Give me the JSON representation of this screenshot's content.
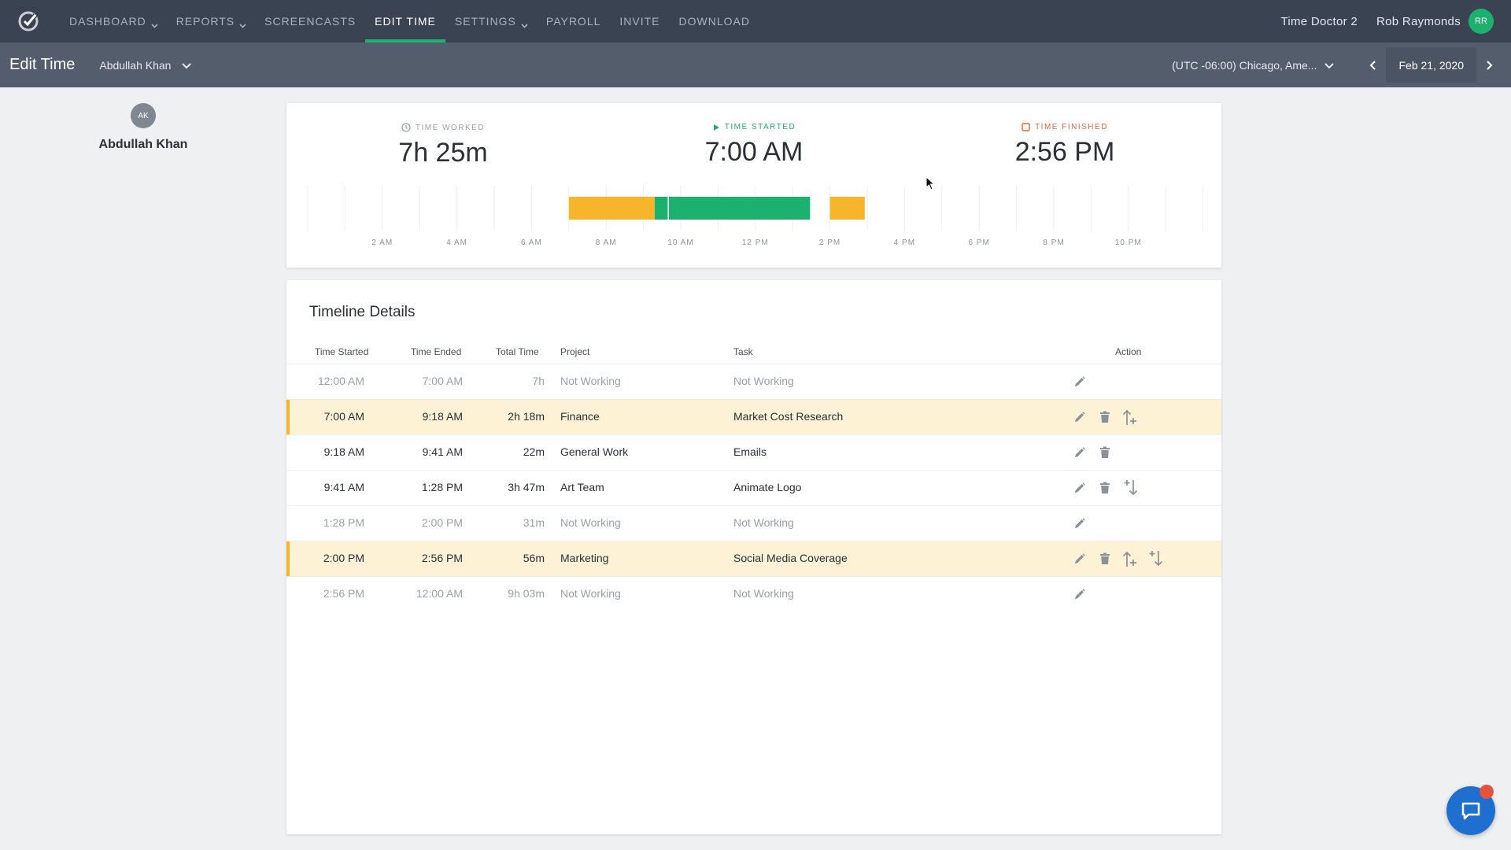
{
  "nav": {
    "items": [
      {
        "label": "DASHBOARD",
        "dropdown": true
      },
      {
        "label": "REPORTS",
        "dropdown": true
      },
      {
        "label": "SCREENCASTS",
        "dropdown": false
      },
      {
        "label": "EDIT TIME",
        "dropdown": false,
        "active": true
      },
      {
        "label": "SETTINGS",
        "dropdown": true
      },
      {
        "label": "PAYROLL",
        "dropdown": false
      },
      {
        "label": "INVITE",
        "dropdown": false
      },
      {
        "label": "DOWNLOAD",
        "dropdown": false
      }
    ],
    "company": "Time Doctor 2",
    "user_name": "Rob Raymonds",
    "user_initials": "RR",
    "accent": "#1db16f"
  },
  "subheader": {
    "title": "Edit Time",
    "selected_user": "Abdullah Khan",
    "timezone": "(UTC -06:00) Chicago, Ame...",
    "date": "Feb 21, 2020"
  },
  "profile": {
    "initials": "AK",
    "name": "Abdullah Khan"
  },
  "summary": {
    "worked_label": "TIME WORKED",
    "worked_value": "7h 25m",
    "started_label": "TIME STARTED",
    "started_value": "7:00 AM",
    "finished_label": "TIME FINISHED",
    "finished_value": "2:56 PM",
    "colors": {
      "worked": "#9aa0a8",
      "started": "#1db16f",
      "finished": "#e8663d"
    }
  },
  "chart_data": {
    "type": "timeline",
    "x_range_hours": [
      0,
      24
    ],
    "tick_labels": [
      "2 AM",
      "4 AM",
      "6 AM",
      "8 AM",
      "10 AM",
      "12 PM",
      "2 PM",
      "4 PM",
      "6 PM",
      "8 PM",
      "10 PM"
    ],
    "segments": [
      {
        "start": 7.0,
        "end": 9.3,
        "kind": "manual",
        "color": "#f8b52b"
      },
      {
        "start": 9.3,
        "end": 9.683,
        "kind": "tracked",
        "color": "#1db16f"
      },
      {
        "start": 9.683,
        "end": 13.467,
        "kind": "tracked",
        "color": "#1db16f"
      },
      {
        "start": 14.0,
        "end": 14.933,
        "kind": "manual",
        "color": "#f8b52b"
      }
    ]
  },
  "timeline": {
    "heading": "Timeline Details",
    "columns": {
      "started": "Time Started",
      "ended": "Time Ended",
      "total": "Total Time",
      "project": "Project",
      "task": "Task",
      "action": "Action"
    },
    "rows": [
      {
        "started": "12:00 AM",
        "ended": "7:00 AM",
        "total": "7h",
        "project": "Not Working",
        "task": "Not Working",
        "style": "muted",
        "actions": [
          "edit"
        ]
      },
      {
        "started": "7:00 AM",
        "ended": "9:18 AM",
        "total": "2h 18m",
        "project": "Finance",
        "task": "Market Cost Research",
        "style": "highlight",
        "actions": [
          "edit",
          "delete",
          "split-up"
        ]
      },
      {
        "started": "9:18 AM",
        "ended": "9:41 AM",
        "total": "22m",
        "project": "General Work",
        "task": "Emails",
        "style": "normal",
        "actions": [
          "edit",
          "delete"
        ]
      },
      {
        "started": "9:41 AM",
        "ended": "1:28 PM",
        "total": "3h 47m",
        "project": "Art Team",
        "task": "Animate Logo",
        "style": "normal",
        "actions": [
          "edit",
          "delete",
          "split-down"
        ]
      },
      {
        "started": "1:28 PM",
        "ended": "2:00 PM",
        "total": "31m",
        "project": "Not Working",
        "task": "Not Working",
        "style": "muted",
        "actions": [
          "edit"
        ]
      },
      {
        "started": "2:00 PM",
        "ended": "2:56 PM",
        "total": "56m",
        "project": "Marketing",
        "task": "Social Media Coverage",
        "style": "highlight",
        "actions": [
          "edit",
          "delete",
          "split-up",
          "split-down"
        ]
      },
      {
        "started": "2:56 PM",
        "ended": "12:00 AM",
        "total": "9h 03m",
        "project": "Not Working",
        "task": "Not Working",
        "style": "muted",
        "actions": [
          "edit"
        ]
      }
    ]
  },
  "icons": {
    "chat": "chat-icon"
  }
}
